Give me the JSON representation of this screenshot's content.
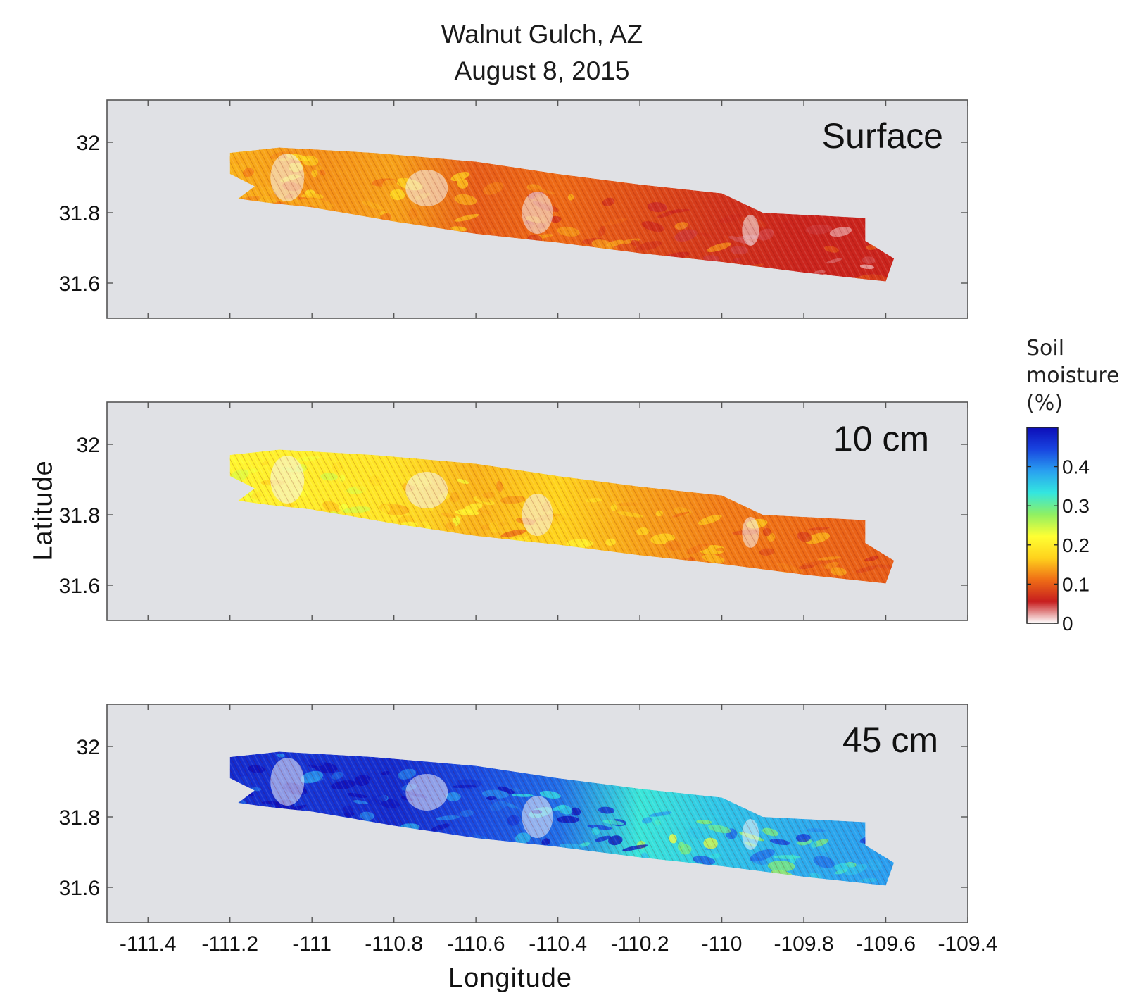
{
  "figure": {
    "title": "Walnut Gulch, AZ",
    "subtitle": "August 8, 2015",
    "xlabel": "Longitude",
    "ylabel": "Latitude"
  },
  "colorbar": {
    "label_lines": [
      "Soil",
      "moisture",
      "(%)"
    ],
    "ticks": [
      0,
      0.1,
      0.2,
      0.3,
      0.4
    ],
    "tick_labels": [
      "0",
      "0.1",
      "0.2",
      "0.3",
      "0.4"
    ],
    "range": [
      0,
      0.5
    ],
    "colormap": "jet",
    "stops": [
      "#ffffff",
      "#c71e1e",
      "#ef6d16",
      "#ffd21c",
      "#ffff33",
      "#8ff063",
      "#33e6e0",
      "#29a0f0",
      "#1844e0",
      "#0d0db8"
    ]
  },
  "chart_data": {
    "type": "heatmap",
    "colors": {
      "panel_background": "#e0e1e5",
      "axis_frame": "#555555"
    },
    "xlim": [
      -111.5,
      -109.4
    ],
    "ylim": [
      31.5,
      32.12
    ],
    "xticks": [
      -111.4,
      -111.2,
      -111,
      -110.8,
      -110.6,
      -110.4,
      -110.2,
      -110,
      -109.8,
      -109.6,
      -109.4
    ],
    "xtick_labels": [
      "-111.4",
      "-111.2",
      "-111",
      "-110.8",
      "-110.6",
      "-110.4",
      "-110.2",
      "-110",
      "-109.8",
      "-109.6",
      "-109.4"
    ],
    "yticks": [
      32,
      31.8,
      31.6
    ],
    "ytick_labels": [
      "32",
      "31.8",
      "31.6"
    ],
    "swath_outline": [
      [
        -111.2,
        31.97
      ],
      [
        -111.08,
        31.985
      ],
      [
        -111.0,
        31.98
      ],
      [
        -110.85,
        31.97
      ],
      [
        -110.6,
        31.945
      ],
      [
        -110.4,
        31.91
      ],
      [
        -110.2,
        31.88
      ],
      [
        -110.0,
        31.855
      ],
      [
        -109.9,
        31.8
      ],
      [
        -109.65,
        31.785
      ],
      [
        -109.65,
        31.72
      ],
      [
        -109.58,
        31.67
      ],
      [
        -109.6,
        31.605
      ],
      [
        -109.8,
        31.63
      ],
      [
        -110.0,
        31.66
      ],
      [
        -110.2,
        31.685
      ],
      [
        -110.4,
        31.715
      ],
      [
        -110.6,
        31.74
      ],
      [
        -110.8,
        31.775
      ],
      [
        -111.0,
        31.815
      ],
      [
        -111.12,
        31.83
      ],
      [
        -111.18,
        31.84
      ],
      [
        -111.14,
        31.875
      ],
      [
        -111.2,
        31.91
      ]
    ],
    "panels": [
      {
        "label": "Surface",
        "moisture_profile": [
          {
            "lon": -111.2,
            "value": 0.15
          },
          {
            "lon": -111.0,
            "value": 0.13
          },
          {
            "lon": -110.8,
            "value": 0.14
          },
          {
            "lon": -110.6,
            "value": 0.1
          },
          {
            "lon": -110.4,
            "value": 0.11
          },
          {
            "lon": -110.2,
            "value": 0.09
          },
          {
            "lon": -110.0,
            "value": 0.07
          },
          {
            "lon": -109.8,
            "value": 0.06
          },
          {
            "lon": -109.6,
            "value": 0.06
          }
        ]
      },
      {
        "label": "10 cm",
        "moisture_profile": [
          {
            "lon": -111.2,
            "value": 0.21
          },
          {
            "lon": -111.0,
            "value": 0.2
          },
          {
            "lon": -110.8,
            "value": 0.19
          },
          {
            "lon": -110.6,
            "value": 0.15
          },
          {
            "lon": -110.4,
            "value": 0.17
          },
          {
            "lon": -110.2,
            "value": 0.14
          },
          {
            "lon": -110.0,
            "value": 0.12
          },
          {
            "lon": -109.8,
            "value": 0.11
          },
          {
            "lon": -109.6,
            "value": 0.1
          }
        ]
      },
      {
        "label": "45 cm",
        "moisture_profile": [
          {
            "lon": -111.2,
            "value": 0.47
          },
          {
            "lon": -111.0,
            "value": 0.46
          },
          {
            "lon": -110.8,
            "value": 0.47
          },
          {
            "lon": -110.6,
            "value": 0.44
          },
          {
            "lon": -110.4,
            "value": 0.42
          },
          {
            "lon": -110.2,
            "value": 0.33
          },
          {
            "lon": -110.0,
            "value": 0.36
          },
          {
            "lon": -109.8,
            "value": 0.38
          },
          {
            "lon": -109.6,
            "value": 0.39
          }
        ]
      }
    ]
  }
}
